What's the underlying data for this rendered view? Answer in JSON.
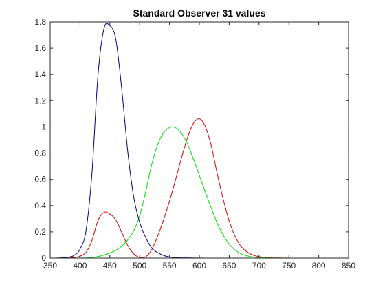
{
  "chart_data": {
    "type": "line",
    "title": "Standard Observer 31 values",
    "xlabel": "",
    "ylabel": "",
    "xlim": [
      350,
      850
    ],
    "ylim": [
      0,
      1.8
    ],
    "x_ticks": [
      350,
      400,
      450,
      500,
      550,
      600,
      650,
      700,
      750,
      800,
      850
    ],
    "y_ticks": [
      0,
      0.2,
      0.4,
      0.6,
      0.8,
      1,
      1.2,
      1.4,
      1.6,
      1.8
    ],
    "grid": false,
    "legend": "none",
    "x": [
      360,
      370,
      380,
      390,
      400,
      410,
      420,
      430,
      440,
      450,
      460,
      470,
      480,
      490,
      500,
      510,
      520,
      530,
      540,
      550,
      560,
      570,
      580,
      590,
      600,
      610,
      620,
      630,
      640,
      650,
      660,
      670,
      680,
      690,
      700,
      710,
      720,
      730,
      740,
      750,
      760,
      770,
      780,
      790,
      800,
      810,
      820,
      830
    ],
    "series": [
      {
        "color": "#e30000",
        "values": [
          0.0001,
          0.0004,
          0.0014,
          0.0042,
          0.0143,
          0.0435,
          0.1344,
          0.2839,
          0.3483,
          0.3362,
          0.2908,
          0.1954,
          0.0956,
          0.032,
          0.0049,
          0.0093,
          0.0633,
          0.1655,
          0.2904,
          0.4334,
          0.5945,
          0.7621,
          0.9163,
          1.0263,
          1.0622,
          1.0026,
          0.8544,
          0.6424,
          0.4479,
          0.2835,
          0.1649,
          0.0874,
          0.0468,
          0.0227,
          0.0114,
          0.0058,
          0.0029,
          0.0014,
          0.0007,
          0.0003,
          0.0002,
          0.0001,
          0.0,
          0.0,
          0.0,
          0.0,
          0.0,
          0.0
        ]
      },
      {
        "color": "#00e000",
        "values": [
          0.0,
          0.0,
          0.0,
          0.0001,
          0.0004,
          0.0012,
          0.004,
          0.0116,
          0.023,
          0.038,
          0.06,
          0.091,
          0.139,
          0.208,
          0.323,
          0.503,
          0.71,
          0.862,
          0.954,
          0.995,
          0.995,
          0.952,
          0.87,
          0.757,
          0.631,
          0.503,
          0.381,
          0.265,
          0.175,
          0.107,
          0.061,
          0.032,
          0.017,
          0.0082,
          0.0041,
          0.0021,
          0.001,
          0.0005,
          0.0003,
          0.0001,
          0.0001,
          0.0,
          0.0,
          0.0,
          0.0,
          0.0,
          0.0,
          0.0
        ]
      },
      {
        "color": "#00007a",
        "values": [
          0.0006,
          0.0023,
          0.0065,
          0.02,
          0.0679,
          0.2074,
          0.6456,
          1.3856,
          1.7471,
          1.7721,
          1.6692,
          1.2876,
          0.813,
          0.4652,
          0.272,
          0.1582,
          0.0782,
          0.0422,
          0.0203,
          0.0087,
          0.0039,
          0.0021,
          0.0017,
          0.0011,
          0.0008,
          0.0003,
          0.0002,
          0.0,
          0.0,
          0.0,
          0.0,
          0.0,
          0.0,
          0.0,
          0.0,
          0.0,
          0.0,
          0.0,
          0.0,
          0.0,
          0.0,
          0.0,
          0.0,
          0.0,
          0.0,
          0.0,
          0.0,
          0.0
        ]
      }
    ]
  }
}
